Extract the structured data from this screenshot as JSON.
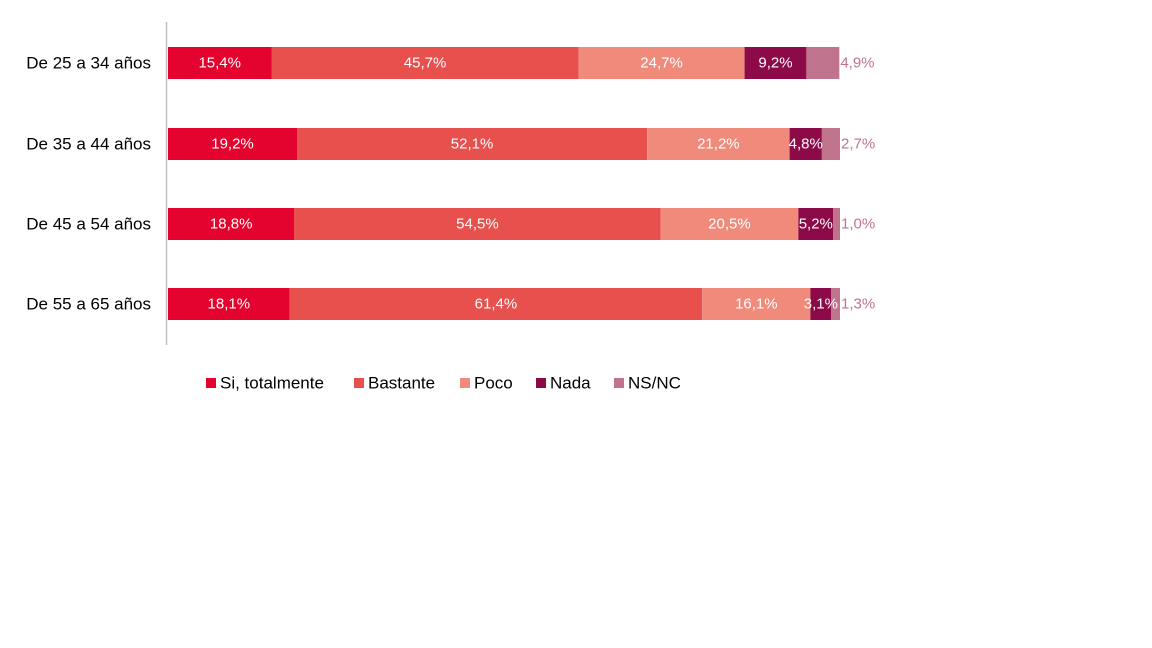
{
  "chart_data": {
    "type": "bar",
    "orientation": "horizontal",
    "stacked": true,
    "percent_scale": true,
    "categories": [
      "De 25 a 34 años",
      "De 35 a 44 años",
      "De 45 a 54 años",
      "De 55 a 65 años"
    ],
    "series": [
      {
        "name": "Si, totalmente",
        "color": "#E4032E",
        "values": [
          15.4,
          19.2,
          18.8,
          18.1
        ],
        "labels": [
          "15,4%",
          "19,2%",
          "18,8%",
          "18,1%"
        ],
        "label_color": "#ffffff"
      },
      {
        "name": "Bastante",
        "color": "#E8504E",
        "values": [
          45.7,
          52.1,
          54.5,
          61.4
        ],
        "labels": [
          "45,7%",
          "52,1%",
          "54,5%",
          "61,4%"
        ],
        "label_color": "#ffffff"
      },
      {
        "name": "Poco",
        "color": "#F08A7B",
        "values": [
          24.7,
          21.2,
          20.5,
          16.1
        ],
        "labels": [
          "24,7%",
          "21,2%",
          "20,5%",
          "16,1%"
        ],
        "label_color": "#ffffff"
      },
      {
        "name": "Nada",
        "color": "#8B0A47",
        "values": [
          9.2,
          4.8,
          5.2,
          3.1
        ],
        "labels": [
          "9,2%",
          "4,8%",
          "5,2%",
          "3,1%"
        ],
        "label_color": "#ffffff"
      },
      {
        "name": "NS/NC",
        "color": "#C0738C",
        "values": [
          4.9,
          2.7,
          1.0,
          1.3
        ],
        "labels": [
          "4,9%",
          "2,7%",
          "1,0%",
          "1,3%"
        ],
        "label_color": "#C0738C",
        "label_position": "outside-end"
      }
    ],
    "xlim": [
      0,
      100
    ],
    "grid": false,
    "legend_position": "bottom",
    "title": "",
    "xlabel": "",
    "ylabel": ""
  }
}
